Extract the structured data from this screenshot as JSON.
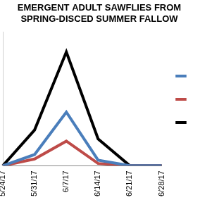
{
  "chart_data": {
    "type": "line",
    "title": [
      "EMERGENT ADULT SAWFLIES FROM",
      "SPRING-DISCED SUMMER FALLOW"
    ],
    "categories": [
      "5/24/17",
      "5/31/17",
      "6/7/17",
      "6/14/17",
      "6/21/17",
      "6/28/17"
    ],
    "series": [
      {
        "color": "#4a7ebb",
        "values": [
          0,
          10,
          48,
          5,
          0,
          0
        ]
      },
      {
        "color": "#be4b48",
        "values": [
          0,
          6,
          22,
          2,
          0,
          0
        ]
      },
      {
        "color": "#000000",
        "values": [
          0,
          32,
          102,
          24,
          0,
          0
        ]
      }
    ],
    "ylim": [
      0,
      120
    ],
    "grid": false,
    "legend": "right",
    "tick_labels": "x"
  }
}
